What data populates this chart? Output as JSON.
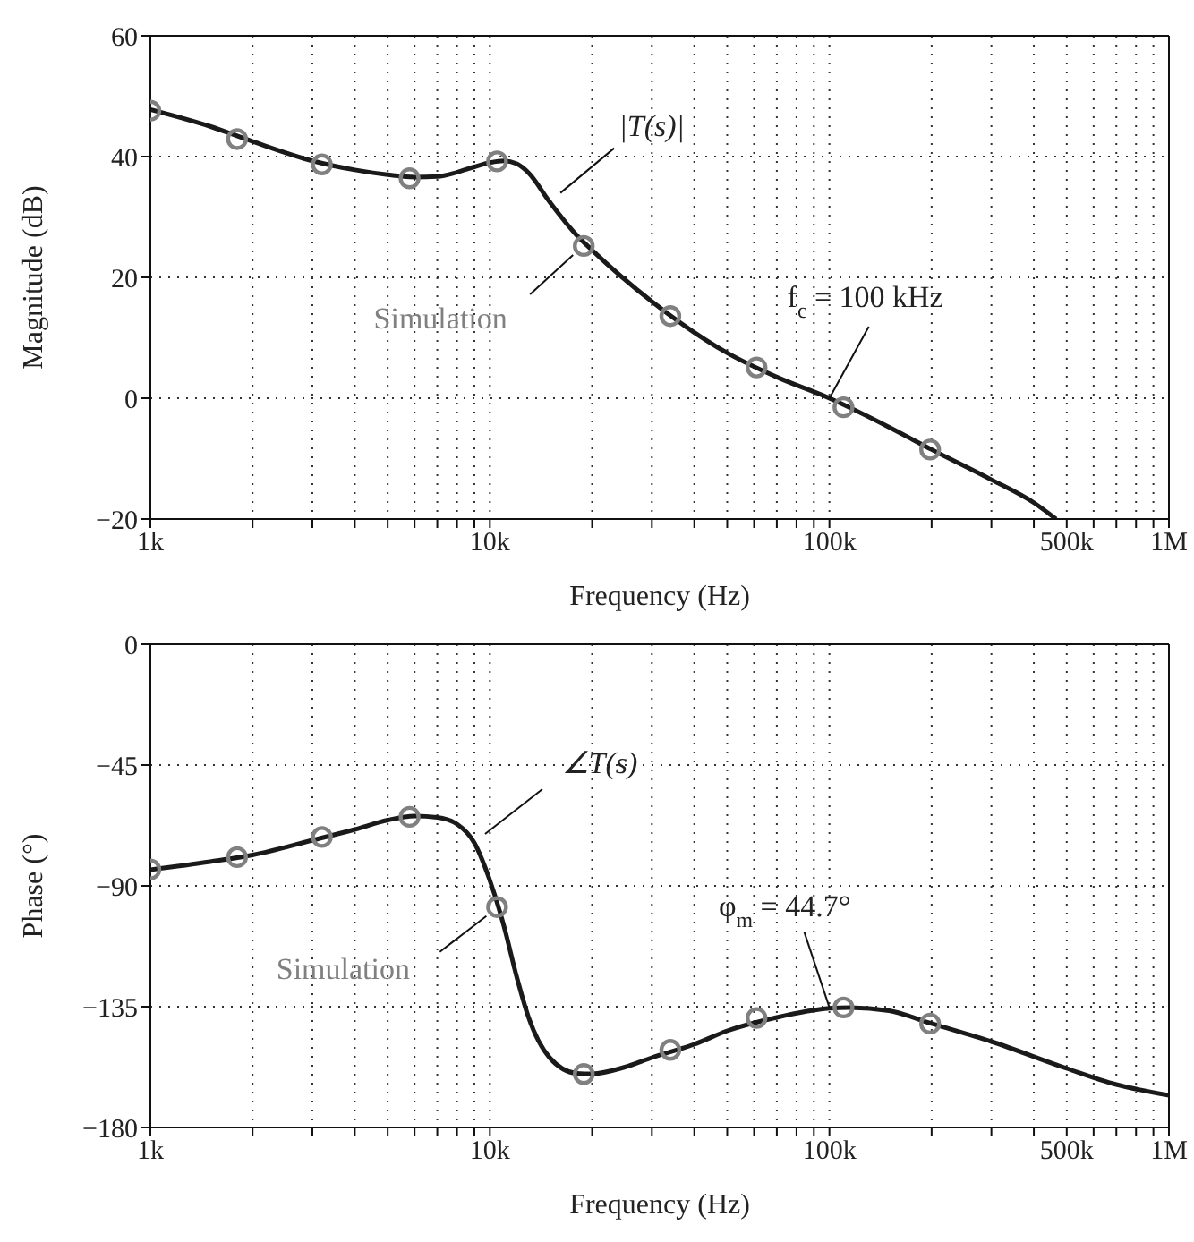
{
  "chart_data": [
    {
      "type": "line",
      "xlabel": "Frequency (Hz)",
      "ylabel": "Magnitude (dB)",
      "log": "x",
      "grid": true,
      "xlim": [
        1000,
        1000000
      ],
      "ylim": [
        -20,
        60
      ],
      "xticks": [
        {
          "value": 1000,
          "label": "1k"
        },
        {
          "value": 2000,
          "label": null
        },
        {
          "value": 3000,
          "label": null
        },
        {
          "value": 4000,
          "label": null
        },
        {
          "value": 5000,
          "label": null
        },
        {
          "value": 6000,
          "label": null
        },
        {
          "value": 7000,
          "label": null
        },
        {
          "value": 8000,
          "label": null
        },
        {
          "value": 9000,
          "label": null
        },
        {
          "value": 10000,
          "label": "10k"
        },
        {
          "value": 20000,
          "label": null
        },
        {
          "value": 30000,
          "label": null
        },
        {
          "value": 40000,
          "label": null
        },
        {
          "value": 50000,
          "label": null
        },
        {
          "value": 60000,
          "label": null
        },
        {
          "value": 70000,
          "label": null
        },
        {
          "value": 80000,
          "label": null
        },
        {
          "value": 90000,
          "label": null
        },
        {
          "value": 100000,
          "label": "100k"
        },
        {
          "value": 200000,
          "label": null
        },
        {
          "value": 300000,
          "label": null
        },
        {
          "value": 400000,
          "label": null
        },
        {
          "value": 500000,
          "label": "500k"
        },
        {
          "value": 600000,
          "label": null
        },
        {
          "value": 700000,
          "label": null
        },
        {
          "value": 800000,
          "label": null
        },
        {
          "value": 900000,
          "label": null
        },
        {
          "value": 1000000,
          "label": "1M"
        }
      ],
      "yticks": [
        {
          "value": -20,
          "label": "−20"
        },
        0,
        20,
        40,
        60
      ],
      "series": [
        {
          "name": "|T(s)|",
          "color": "#1a1a1a",
          "marker": "none",
          "line_style": "solid",
          "x": [
            1000,
            1500,
            2000,
            3000,
            4000,
            5000,
            6000,
            7000,
            8000,
            9000,
            10000,
            11000,
            12000,
            13000,
            15000,
            18000,
            20000,
            30000,
            50000,
            70000,
            100000,
            150000,
            200000,
            300000,
            400000,
            465000
          ],
          "values": [
            47.8,
            45,
            42.5,
            39.3,
            37.8,
            37,
            36.6,
            36.7,
            37.4,
            38.3,
            39,
            39.3,
            38.8,
            37.3,
            32.5,
            27,
            24.5,
            16,
            7.5,
            3.5,
            0,
            -4.8,
            -8.5,
            -13.5,
            -17.3,
            -20
          ]
        },
        {
          "name": "Simulation",
          "type": "scatter",
          "color": "#808080",
          "marker": "circle",
          "x": [
            1000,
            1800,
            3200,
            5800,
            10500,
            18900,
            34000,
            61000,
            110000,
            198000
          ],
          "values": [
            47.6,
            42.9,
            38.7,
            36.4,
            39.2,
            25.2,
            13.6,
            5.1,
            -1.5,
            -8.5
          ]
        }
      ],
      "annotations": [
        {
          "text": "f$_{c}$ = 100 kHz",
          "x": 100000,
          "y": 0
        }
      ]
    },
    {
      "type": "line",
      "xlabel": "Frequency (Hz)",
      "ylabel": "Phase (°)",
      "log": "x",
      "grid": true,
      "xlim": [
        1000,
        1000000
      ],
      "ylim": [
        -180,
        0
      ],
      "xticks": [
        {
          "value": 1000,
          "label": "1k"
        },
        {
          "value": 2000,
          "label": null
        },
        {
          "value": 3000,
          "label": null
        },
        {
          "value": 4000,
          "label": null
        },
        {
          "value": 5000,
          "label": null
        },
        {
          "value": 6000,
          "label": null
        },
        {
          "value": 7000,
          "label": null
        },
        {
          "value": 8000,
          "label": null
        },
        {
          "value": 9000,
          "label": null
        },
        {
          "value": 10000,
          "label": "10k"
        },
        {
          "value": 20000,
          "label": null
        },
        {
          "value": 30000,
          "label": null
        },
        {
          "value": 40000,
          "label": null
        },
        {
          "value": 50000,
          "label": null
        },
        {
          "value": 60000,
          "label": null
        },
        {
          "value": 70000,
          "label": null
        },
        {
          "value": 80000,
          "label": null
        },
        {
          "value": 90000,
          "label": null
        },
        {
          "value": 100000,
          "label": "100k"
        },
        {
          "value": 200000,
          "label": null
        },
        {
          "value": 300000,
          "label": null
        },
        {
          "value": 400000,
          "label": null
        },
        {
          "value": 500000,
          "label": "500k"
        },
        {
          "value": 600000,
          "label": null
        },
        {
          "value": 700000,
          "label": null
        },
        {
          "value": 800000,
          "label": null
        },
        {
          "value": 900000,
          "label": null
        },
        {
          "value": 1000000,
          "label": "1M"
        }
      ],
      "yticks": [
        {
          "value": -180,
          "label": "−180"
        },
        {
          "value": -135,
          "label": "−135"
        },
        {
          "value": -90,
          "label": "−90"
        },
        {
          "value": -45,
          "label": "−45"
        },
        0
      ],
      "series": [
        {
          "name": "∠T(s)",
          "color": "#1a1a1a",
          "marker": "none",
          "line_style": "solid",
          "x": [
            1000,
            1500,
            2000,
            3000,
            4000,
            5000,
            6000,
            7000,
            8000,
            9000,
            10000,
            11000,
            12000,
            13000,
            15000,
            18000,
            20000,
            25000,
            30000,
            40000,
            50000,
            70000,
            100000,
            115000,
            150000,
            200000,
            300000,
            500000,
            700000,
            1000000
          ],
          "values": [
            -84,
            -81,
            -78.5,
            -73,
            -69,
            -65.5,
            -64,
            -64.5,
            -67,
            -74,
            -88,
            -105,
            -124,
            -139,
            -154,
            -159.8,
            -160,
            -157.5,
            -154,
            -149,
            -144,
            -139,
            -135.6,
            -135.3,
            -136.5,
            -141.3,
            -148,
            -158,
            -164,
            -168
          ]
        },
        {
          "name": "Simulation",
          "type": "scatter",
          "color": "#808080",
          "marker": "circle",
          "x": [
            1000,
            1800,
            3200,
            5800,
            10500,
            18900,
            34000,
            61000,
            110000,
            198000
          ],
          "values": [
            -83.9,
            -79.3,
            -71.8,
            -64.3,
            -97.9,
            -160.1,
            -151.1,
            -139.2,
            -135.3,
            -141.3
          ]
        }
      ],
      "annotations": [
        {
          "text": "φ$_{m}$ = 44.7°",
          "x": 100000,
          "y": -135.3
        }
      ]
    }
  ]
}
